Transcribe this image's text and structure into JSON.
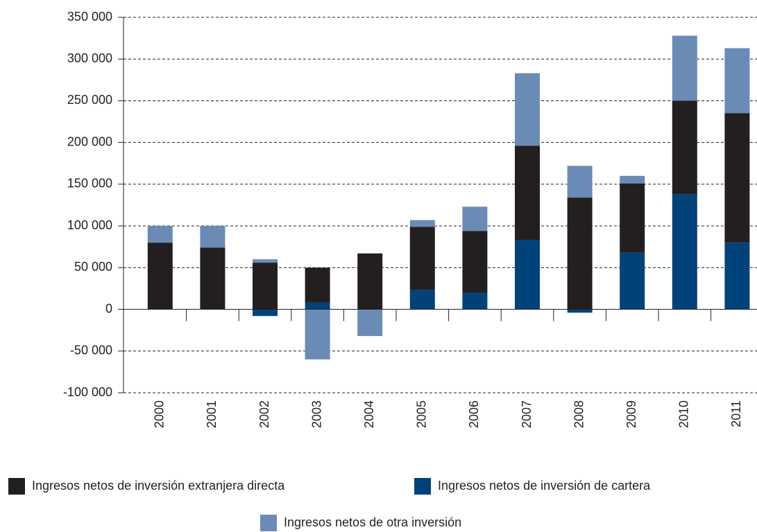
{
  "chart_data": {
    "type": "bar",
    "stacked": true,
    "categories": [
      "2000",
      "2001",
      "2002",
      "2003",
      "2004",
      "2005",
      "2006",
      "2007",
      "2008",
      "2009",
      "2010",
      "2011"
    ],
    "series": [
      {
        "name": "Ingresos netos de inversión extranjera directa",
        "color": "#231f20",
        "values": [
          80000,
          74000,
          56000,
          42000,
          67000,
          76000,
          74000,
          113000,
          134000,
          83000,
          112000,
          155000
        ]
      },
      {
        "name": "Ingresos netos de inversión de cartera",
        "color": "#00427a",
        "values": [
          0,
          0,
          -8000,
          8000,
          0,
          23000,
          20000,
          83000,
          -4000,
          68000,
          138000,
          80000
        ]
      },
      {
        "name": "Ingresos netos de otra inversión",
        "color": "#6a8bb5",
        "values": [
          20000,
          26000,
          4000,
          -60000,
          -32000,
          8000,
          29000,
          87000,
          38000,
          9000,
          78000,
          78000
        ]
      }
    ],
    "ylim": [
      -100000,
      350000
    ],
    "yticks": [
      {
        "value": -100000,
        "label": "-100 000"
      },
      {
        "value": -50000,
        "label": "-50 000"
      },
      0,
      {
        "value": 50000,
        "label": "50 000"
      },
      {
        "value": 100000,
        "label": "100 000"
      },
      {
        "value": 150000,
        "label": "150 000"
      },
      {
        "value": 200000,
        "label": "200 000"
      },
      {
        "value": 250000,
        "label": "250 000"
      },
      {
        "value": 300000,
        "label": "300 000"
      },
      {
        "value": 350000,
        "label": "350 000"
      }
    ],
    "grid": true
  }
}
